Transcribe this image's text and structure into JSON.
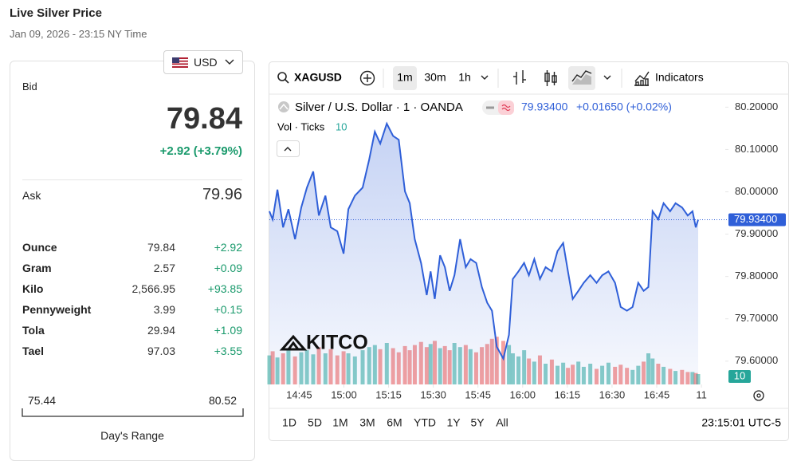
{
  "header": {
    "title": "Live Silver Price",
    "subtitle": "Jan 09, 2026 - 23:15 NY Time"
  },
  "currency": "USD",
  "bid": {
    "label": "Bid",
    "value": "79.84",
    "change": "+2.92 (+3.79%)"
  },
  "ask": {
    "label": "Ask",
    "value": "79.96"
  },
  "units": {
    "rows": [
      [
        "Ounce",
        "79.84",
        "+2.92"
      ],
      [
        "Gram",
        "2.57",
        "+0.09"
      ],
      [
        "Kilo",
        "2,566.95",
        "+93.85"
      ],
      [
        "Pennyweight",
        "3.99",
        "+0.15"
      ],
      [
        "Tola",
        "29.94",
        "+1.09"
      ],
      [
        "Tael",
        "97.03",
        "+3.55"
      ]
    ]
  },
  "range": {
    "low": "75.44",
    "high": "80.52",
    "label": "Day's Range"
  },
  "chart_data": {
    "type": "line",
    "symbol": "XAGUSD",
    "intervals": [
      "1m",
      "30m",
      "1h"
    ],
    "indicators_label": "Indicators",
    "title": "Silver / U.S. Dollar · 1 · OANDA",
    "change": "+0.01650 (+0.02%)",
    "last_price": {
      "value": 79.934,
      "label": "79.93400"
    },
    "x": [
      35,
      36.1,
      37.7,
      39.6,
      41.4,
      43.6,
      45.7,
      47.6,
      49.7,
      51.6,
      53.8,
      55.6,
      57.8,
      59.9,
      61.5,
      63.7,
      66.3,
      68.5,
      70.4,
      72.2,
      74.4,
      76.5,
      78.4,
      80.5,
      82.1,
      83.8,
      85.9,
      87.8,
      89.1,
      90.5,
      92.3,
      93.9,
      95.5,
      97.1,
      99.0,
      100.9,
      102.5,
      104.4,
      106.3,
      108.1,
      109.7,
      111.3,
      113.5,
      115.4,
      116.7,
      118.6,
      120.5,
      122.1,
      123.9,
      125.8,
      127.7,
      129.8,
      131.7,
      133.6,
      135.2,
      136.8,
      138.7,
      140.5,
      142.7,
      144.8,
      146.7,
      148.8,
      151.0,
      152.9,
      155.0,
      156.9,
      158.8,
      160.6,
      162.2,
      163.6,
      165.5,
      167.3,
      169.5,
      171.3,
      173.5,
      175.4,
      177.0,
      178.1,
      178.9
    ],
    "xlim": [
      35,
      188
    ],
    "xticks": [
      {
        "value": 45,
        "label": "14:45"
      },
      {
        "value": 60,
        "label": "15:00"
      },
      {
        "value": 75,
        "label": "15:15"
      },
      {
        "value": 90,
        "label": "15:30"
      },
      {
        "value": 105,
        "label": "15:45"
      },
      {
        "value": 120,
        "label": "16:00"
      },
      {
        "value": 135,
        "label": "16:15"
      },
      {
        "value": 150,
        "label": "16:30"
      },
      {
        "value": 165,
        "label": "16:45"
      },
      {
        "value": 180,
        "label": "11"
      }
    ],
    "ylim": [
      79.545,
      80.227
    ],
    "yticks": [
      {
        "value": 79.6,
        "label": "79.60000"
      },
      {
        "value": 79.7,
        "label": "79.70000"
      },
      {
        "value": 79.8,
        "label": "79.80000"
      },
      {
        "value": 79.9,
        "label": "79.90000"
      },
      {
        "value": 80.0,
        "label": "80.00000"
      },
      {
        "value": 80.1,
        "label": "80.10000"
      },
      {
        "value": 80.2,
        "label": "80.20000"
      }
    ],
    "series": [
      {
        "color": "#2f5fd8",
        "values": [
          79.954,
          79.935,
          80.005,
          79.916,
          79.959,
          79.888,
          79.963,
          80.01,
          80.048,
          79.944,
          79.991,
          79.916,
          79.907,
          79.854,
          79.959,
          79.991,
          80.01,
          80.076,
          80.142,
          80.114,
          80.161,
          80.132,
          80.123,
          80.001,
          79.973,
          79.888,
          79.832,
          79.756,
          79.812,
          79.747,
          79.85,
          79.822,
          79.766,
          79.803,
          79.888,
          79.822,
          79.841,
          79.832,
          79.775,
          79.738,
          79.719,
          79.634,
          79.606,
          79.662,
          79.794,
          79.812,
          79.832,
          79.803,
          79.841,
          79.794,
          79.822,
          79.812,
          79.86,
          79.879,
          79.812,
          79.747,
          79.766,
          79.785,
          79.803,
          79.785,
          79.803,
          79.812,
          79.785,
          79.728,
          79.719,
          79.728,
          79.785,
          79.766,
          79.775,
          79.954,
          79.935,
          79.973,
          79.954,
          79.973,
          79.963,
          79.944,
          79.954,
          79.916,
          79.934
        ]
      }
    ],
    "volume": {
      "name": "Vol · Ticks",
      "up_color": "#26a69a",
      "down_color": "#ef5350",
      "values": [
        28,
        32,
        26,
        30,
        35,
        27,
        31,
        33,
        29,
        36,
        30,
        34,
        28,
        32,
        30,
        27,
        33,
        36,
        38,
        34,
        40,
        35,
        31,
        37,
        33,
        38,
        41,
        36,
        39,
        42,
        35,
        37,
        33,
        40,
        36,
        38,
        34,
        31,
        36,
        39,
        44,
        46,
        42,
        38,
        30,
        27,
        33,
        25,
        22,
        28,
        20,
        24,
        18,
        21,
        16,
        19,
        22,
        17,
        20,
        15,
        18,
        21,
        17,
        19,
        16,
        14,
        18,
        22,
        30,
        25,
        20,
        17,
        15,
        13,
        14,
        12,
        12,
        11,
        10
      ]
    },
    "watermark": "KITCO",
    "ranges": [
      "1D",
      "5D",
      "1M",
      "3M",
      "6M",
      "YTD",
      "1Y",
      "5Y",
      "All"
    ],
    "clock": "23:15:01 UTC-5"
  }
}
